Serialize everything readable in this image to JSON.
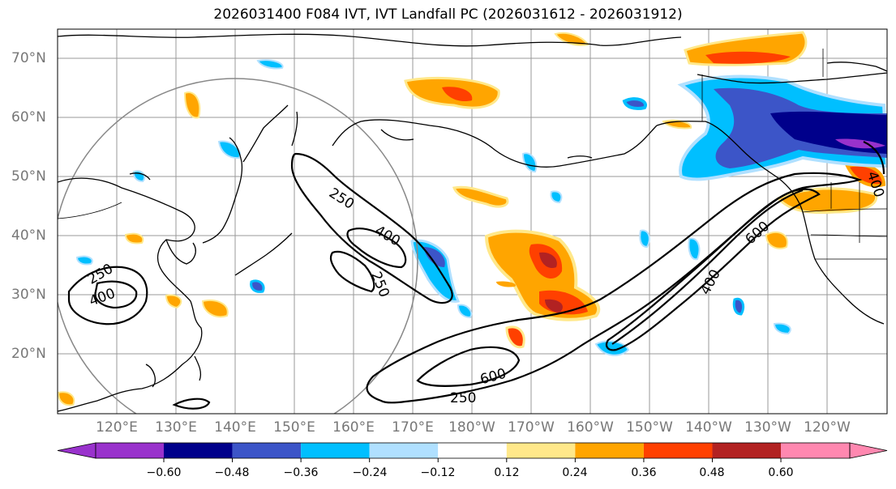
{
  "title": "2026031400 F084 IVT, IVT Landfall PC (2026031612 - 2026031912)",
  "lat_labels": [
    "70°N",
    "60°N",
    "50°N",
    "40°N",
    "30°N",
    "20°N"
  ],
  "lon_labels": [
    "120°E",
    "130°E",
    "140°E",
    "150°E",
    "160°E",
    "170°E",
    "180°W",
    "170°W",
    "160°W",
    "150°W",
    "140°W",
    "130°W",
    "120°W"
  ],
  "contour_labels": {
    "c250_a": "250",
    "c400_a": "400",
    "c250_b": "250",
    "c250_w1": "250",
    "c400_w1": "400",
    "c600_s": "600",
    "c250_s": "250",
    "c600_e": "600",
    "c400_e": "400",
    "c400_ne": "400"
  },
  "colorbar": {
    "ticks": [
      "−0.60",
      "−0.48",
      "−0.36",
      "−0.24",
      "−0.12",
      "0.12",
      "0.24",
      "0.36",
      "0.48",
      "0.60"
    ],
    "colors": [
      "#9932cc",
      "#00008b",
      "#3c55c8",
      "#00bfff",
      "#b0e0ff",
      "#ffffff",
      "#ffe88a",
      "#ffa500",
      "#ff4000",
      "#b22222",
      "#ff88b0"
    ]
  },
  "palette": {
    "neg_strong": "#00008b",
    "neg_mid": "#3c55c8",
    "neg": "#00bfff",
    "neg_light": "#b0e0ff",
    "pos_light": "#ffe88a",
    "pos": "#ffa500",
    "pos_mid": "#ff4000",
    "pos_strong": "#b22222"
  }
}
